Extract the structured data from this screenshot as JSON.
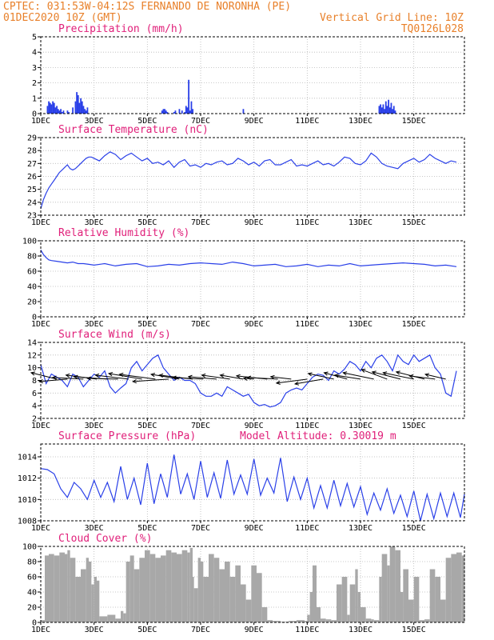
{
  "header": {
    "line1_left": "CPTEC:   031:53W-04:12S  FERNANDO DE NORONHA (PE)",
    "line2_left": "01DEC2020 10Z (GMT)",
    "line2_right": "Vertical Grid Line: 10Z",
    "line3_right": "TQ0126L028"
  },
  "colors": {
    "header": "#e8802a",
    "panel_title": "#e0207a",
    "series": "#2a40e8",
    "cloud": "#a8a8a8",
    "arrow": "#000000"
  },
  "chart_data": [
    {
      "type": "bar",
      "title": "Precipitation (mm/h)",
      "x_tick_labels": [
        "1DEC",
        "3DEC",
        "5DEC",
        "7DEC",
        "9DEC",
        "11DEC",
        "13DEC",
        "15DEC"
      ],
      "y_tick_labels": [
        "0",
        "1",
        "2",
        "3",
        "4",
        "5"
      ],
      "ylim": [
        0,
        5
      ],
      "x_unit": "days since 01DEC 10Z",
      "x": [
        0.25,
        0.3,
        0.35,
        0.4,
        0.45,
        0.5,
        0.55,
        0.6,
        0.65,
        0.7,
        0.75,
        0.8,
        0.85,
        1.0,
        1.05,
        1.2,
        1.3,
        1.35,
        1.4,
        1.45,
        1.5,
        1.55,
        1.6,
        1.65,
        1.7,
        1.75,
        4.55,
        4.6,
        4.65,
        4.7,
        4.75,
        5.0,
        5.05,
        5.2,
        5.3,
        5.4,
        5.45,
        5.5,
        5.55,
        5.6,
        5.65,
        5.7,
        7.6,
        12.7,
        12.75,
        12.8,
        12.85,
        12.9,
        12.95,
        13.0,
        13.05,
        13.1,
        13.15,
        13.2,
        13.25,
        13.3
      ],
      "values": [
        0.5,
        0.8,
        0.7,
        0.6,
        0.8,
        0.7,
        0.4,
        0.5,
        0.3,
        0.2,
        0.3,
        0.1,
        0.2,
        0.2,
        0.1,
        0.4,
        0.8,
        1.4,
        1.2,
        0.7,
        1.0,
        0.8,
        0.5,
        0.3,
        0.2,
        0.4,
        0.2,
        0.3,
        0.3,
        0.2,
        0.1,
        0.1,
        0.2,
        0.3,
        0.2,
        0.1,
        0.5,
        0.4,
        2.2,
        0.2,
        0.8,
        0.3,
        0.3,
        0.5,
        0.6,
        0.4,
        0.6,
        0.3,
        0.8,
        0.5,
        0.9,
        0.4,
        0.7,
        0.3,
        0.5,
        0.2
      ]
    },
    {
      "type": "line",
      "title": "Surface Temperature (nC)",
      "x_tick_labels": [
        "1DEC",
        "3DEC",
        "5DEC",
        "7DEC",
        "9DEC",
        "11DEC",
        "13DEC",
        "15DEC"
      ],
      "y_tick_labels": [
        "23",
        "24",
        "25",
        "26",
        "27",
        "28",
        "29"
      ],
      "ylim": [
        23,
        29
      ],
      "x": [
        0,
        0.1,
        0.2,
        0.3,
        0.4,
        0.5,
        0.6,
        0.7,
        0.8,
        0.9,
        1.0,
        1.1,
        1.2,
        1.3,
        1.4,
        1.5,
        1.6,
        1.7,
        1.8,
        1.9,
        2.0,
        2.2,
        2.4,
        2.6,
        2.8,
        3.0,
        3.2,
        3.4,
        3.6,
        3.8,
        4.0,
        4.2,
        4.4,
        4.6,
        4.8,
        5.0,
        5.2,
        5.4,
        5.6,
        5.8,
        6.0,
        6.2,
        6.4,
        6.6,
        6.8,
        7.0,
        7.2,
        7.4,
        7.6,
        7.8,
        8.0,
        8.2,
        8.4,
        8.6,
        8.8,
        9.0,
        9.2,
        9.4,
        9.6,
        9.8,
        10.0,
        10.2,
        10.4,
        10.6,
        10.8,
        11.0,
        11.2,
        11.4,
        11.6,
        11.8,
        12.0,
        12.2,
        12.4,
        12.6,
        12.8,
        13.0,
        13.2,
        13.4,
        13.6,
        13.8,
        14.0,
        14.2,
        14.4,
        14.6,
        14.8,
        15.0,
        15.2,
        15.4,
        15.6
      ],
      "values": [
        23.5,
        24.2,
        24.7,
        25.1,
        25.4,
        25.7,
        26.0,
        26.3,
        26.5,
        26.7,
        26.9,
        26.6,
        26.5,
        26.6,
        26.8,
        27.0,
        27.2,
        27.4,
        27.5,
        27.5,
        27.4,
        27.2,
        27.6,
        27.9,
        27.7,
        27.3,
        27.6,
        27.8,
        27.5,
        27.2,
        27.4,
        27.0,
        27.1,
        26.9,
        27.2,
        26.7,
        27.1,
        27.3,
        26.8,
        26.9,
        26.7,
        27.0,
        26.9,
        27.1,
        27.2,
        26.9,
        27.0,
        27.4,
        27.2,
        26.9,
        27.1,
        26.8,
        27.2,
        27.3,
        26.9,
        26.9,
        27.1,
        27.3,
        26.8,
        26.9,
        26.8,
        27.0,
        27.2,
        26.9,
        27.0,
        26.8,
        27.1,
        27.5,
        27.4,
        27.0,
        26.9,
        27.2,
        27.8,
        27.5,
        27.0,
        26.8,
        26.7,
        26.6,
        27.0,
        27.2,
        27.4,
        27.1,
        27.3,
        27.7,
        27.4,
        27.2,
        27.0,
        27.2,
        27.1
      ]
    },
    {
      "type": "line",
      "title": "Relative Humidity (%)",
      "x_tick_labels": [
        "1DEC",
        "3DEC",
        "5DEC",
        "7DEC",
        "9DEC",
        "11DEC",
        "13DEC",
        "15DEC"
      ],
      "y_tick_labels": [
        "0",
        "20",
        "40",
        "60",
        "80",
        "100"
      ],
      "ylim": [
        0,
        100
      ],
      "x": [
        0,
        0.1,
        0.2,
        0.3,
        0.4,
        0.6,
        0.8,
        1.0,
        1.2,
        1.4,
        1.6,
        1.8,
        2.0,
        2.4,
        2.8,
        3.2,
        3.6,
        4.0,
        4.4,
        4.8,
        5.2,
        5.6,
        6.0,
        6.4,
        6.8,
        7.2,
        7.6,
        8.0,
        8.4,
        8.8,
        9.2,
        9.6,
        10.0,
        10.4,
        10.8,
        11.2,
        11.6,
        12.0,
        12.4,
        12.8,
        13.2,
        13.6,
        14.0,
        14.4,
        14.8,
        15.2,
        15.6
      ],
      "values": [
        88,
        82,
        78,
        75,
        74,
        73,
        72,
        71,
        72,
        70,
        70,
        69,
        68,
        70,
        67,
        69,
        70,
        66,
        67,
        69,
        68,
        70,
        71,
        70,
        69,
        72,
        70,
        67,
        68,
        69,
        66,
        67,
        69,
        66,
        68,
        67,
        70,
        67,
        68,
        69,
        70,
        71,
        70,
        69,
        67,
        68,
        66
      ]
    },
    {
      "type": "line",
      "title": "Surface Wind (m/s)",
      "x_tick_labels": [
        "1DEC",
        "3DEC",
        "5DEC",
        "7DEC",
        "9DEC",
        "11DEC",
        "13DEC",
        "15DEC"
      ],
      "y_tick_labels": [
        "2",
        "4",
        "6",
        "8",
        "10",
        "12",
        "14"
      ],
      "ylim": [
        2,
        14
      ],
      "x": [
        0,
        0.2,
        0.4,
        0.6,
        0.8,
        1.0,
        1.2,
        1.4,
        1.6,
        1.8,
        2.0,
        2.2,
        2.4,
        2.6,
        2.8,
        3.0,
        3.2,
        3.4,
        3.6,
        3.8,
        4.0,
        4.2,
        4.4,
        4.6,
        4.8,
        5.0,
        5.2,
        5.4,
        5.6,
        5.8,
        6.0,
        6.2,
        6.4,
        6.6,
        6.8,
        7.0,
        7.2,
        7.4,
        7.6,
        7.8,
        8.0,
        8.2,
        8.4,
        8.6,
        8.8,
        9.0,
        9.2,
        9.4,
        9.6,
        9.8,
        10.0,
        10.2,
        10.4,
        10.6,
        10.8,
        11.0,
        11.2,
        11.4,
        11.6,
        11.8,
        12.0,
        12.2,
        12.4,
        12.6,
        12.8,
        13.0,
        13.2,
        13.4,
        13.6,
        13.8,
        14.0,
        14.2,
        14.4,
        14.6,
        14.8,
        15.0,
        15.2,
        15.4,
        15.6
      ],
      "values": [
        10.5,
        7.5,
        9,
        8.5,
        8,
        7,
        9,
        8.5,
        7,
        8,
        9,
        8.5,
        9.5,
        7,
        6,
        6.8,
        7.5,
        10,
        11,
        9.5,
        10.5,
        11.5,
        12,
        10,
        9,
        8,
        8.5,
        8,
        8,
        7.5,
        6,
        5.5,
        5.5,
        6,
        5.5,
        7,
        6.5,
        6,
        5.5,
        5.8,
        4.5,
        4,
        4.2,
        3.8,
        4,
        4.5,
        6,
        6.5,
        6.8,
        6.5,
        7.5,
        8.5,
        9,
        8.8,
        8,
        9.5,
        9,
        9.8,
        11,
        10.5,
        9.5,
        11,
        10,
        11.5,
        12,
        11,
        9.5,
        12,
        11,
        10.5,
        12,
        11,
        11.5,
        12,
        10,
        9,
        6,
        5.5,
        9.5
      ]
    },
    {
      "type": "line",
      "title": "Surface Pressure (hPa)",
      "annotation": "Model Altitude: 0.30019 m",
      "x_tick_labels": [
        "1DEC",
        "3DEC",
        "5DEC",
        "7DEC",
        "9DEC",
        "11DEC",
        "13DEC",
        "15DEC"
      ],
      "y_tick_labels": [
        "1008",
        "1010",
        "1012",
        "1014"
      ],
      "ylim": [
        1008,
        1015.2
      ],
      "x": [
        0,
        0.25,
        0.5,
        0.75,
        1.0,
        1.25,
        1.5,
        1.75,
        2.0,
        2.25,
        2.5,
        2.75,
        3.0,
        3.25,
        3.5,
        3.75,
        4.0,
        4.25,
        4.5,
        4.75,
        5.0,
        5.25,
        5.5,
        5.75,
        6.0,
        6.25,
        6.5,
        6.75,
        7.0,
        7.25,
        7.5,
        7.75,
        8.0,
        8.25,
        8.5,
        8.75,
        9.0,
        9.25,
        9.5,
        9.75,
        10.0,
        10.25,
        10.5,
        10.75,
        11.0,
        11.25,
        11.5,
        11.75,
        12.0,
        12.25,
        12.5,
        12.75,
        13.0,
        13.25,
        13.5,
        13.75,
        14.0,
        14.25,
        14.5,
        14.75,
        15.0,
        15.25,
        15.5,
        15.75,
        15.9
      ],
      "values": [
        1012.9,
        1012.8,
        1012.4,
        1011.0,
        1010.2,
        1011.6,
        1011.0,
        1010.0,
        1011.8,
        1010.2,
        1011.6,
        1009.8,
        1013.1,
        1010.0,
        1012.0,
        1009.5,
        1013.4,
        1009.6,
        1012.4,
        1010.2,
        1014.2,
        1010.5,
        1012.4,
        1010.0,
        1013.6,
        1010.2,
        1012.5,
        1010.1,
        1013.7,
        1010.5,
        1012.3,
        1010.5,
        1013.8,
        1010.4,
        1012.0,
        1010.6,
        1013.9,
        1009.8,
        1012.1,
        1010.0,
        1012.0,
        1009.2,
        1011.3,
        1009.2,
        1011.8,
        1009.4,
        1011.5,
        1009.3,
        1011.2,
        1008.6,
        1010.6,
        1009.0,
        1011.0,
        1008.7,
        1010.4,
        1008.4,
        1010.8,
        1008.0,
        1010.5,
        1008.2,
        1010.6,
        1008.4,
        1010.6,
        1008.3,
        1010.5
      ]
    },
    {
      "type": "area",
      "title": "Cloud Cover (%)",
      "x_tick_labels": [
        "1DEC",
        "3DEC",
        "5DEC",
        "7DEC",
        "9DEC",
        "11DEC",
        "13DEC",
        "15DEC"
      ],
      "y_tick_labels": [
        "0",
        "20",
        "40",
        "60",
        "80",
        "100"
      ],
      "ylim": [
        0,
        100
      ],
      "x": [
        0,
        0.15,
        0.3,
        0.5,
        0.7,
        0.9,
        1.0,
        1.1,
        1.3,
        1.5,
        1.7,
        1.8,
        1.9,
        2.0,
        2.1,
        2.2,
        2.5,
        2.8,
        3.0,
        3.1,
        3.2,
        3.35,
        3.5,
        3.7,
        3.9,
        4.1,
        4.3,
        4.5,
        4.7,
        4.9,
        5.1,
        5.3,
        5.5,
        5.6,
        5.7,
        5.75,
        5.9,
        6.0,
        6.1,
        6.3,
        6.5,
        6.7,
        6.9,
        7.1,
        7.3,
        7.5,
        7.7,
        7.9,
        8.1,
        8.3,
        8.5,
        8.7,
        9.0,
        9.3,
        9.6,
        9.9,
        10.0,
        10.1,
        10.2,
        10.35,
        10.5,
        10.7,
        10.9,
        11.1,
        11.3,
        11.5,
        11.6,
        11.8,
        11.9,
        12.0,
        12.2,
        12.4,
        12.5,
        12.7,
        12.8,
        13.0,
        13.1,
        13.3,
        13.5,
        13.6,
        13.8,
        14.0,
        14.2,
        14.4,
        14.6,
        14.8,
        15.0,
        15.2,
        15.4,
        15.6,
        15.8,
        15.9
      ],
      "values": [
        3,
        88,
        90,
        88,
        92,
        90,
        95,
        85,
        60,
        70,
        85,
        80,
        50,
        60,
        55,
        8,
        10,
        5,
        15,
        12,
        80,
        88,
        70,
        85,
        95,
        90,
        85,
        88,
        95,
        92,
        90,
        95,
        92,
        98,
        60,
        45,
        85,
        80,
        60,
        90,
        85,
        70,
        80,
        60,
        75,
        50,
        30,
        75,
        65,
        20,
        3,
        2,
        1,
        2,
        3,
        2,
        10,
        40,
        75,
        20,
        5,
        4,
        3,
        50,
        60,
        10,
        50,
        70,
        40,
        20,
        5,
        4,
        3,
        60,
        90,
        75,
        100,
        95,
        40,
        70,
        30,
        60,
        3,
        4,
        70,
        60,
        30,
        85,
        90,
        92,
        88,
        90
      ]
    }
  ],
  "wind_vectors": [
    {
      "x": 0.6,
      "dx": -1.0,
      "dy": 0.8
    },
    {
      "x": 1.0,
      "dx": -1.1,
      "dy": -0.3
    },
    {
      "x": 1.6,
      "dx": -1.2,
      "dy": 0.2
    },
    {
      "x": 2.1,
      "dx": -1.2,
      "dy": 0.5
    },
    {
      "x": 2.5,
      "dx": -1.3,
      "dy": 0.3
    },
    {
      "x": 2.9,
      "dx": -1.2,
      "dy": 0.1
    },
    {
      "x": 3.3,
      "dx": -1.3,
      "dy": 0.5
    },
    {
      "x": 3.8,
      "dx": -1.3,
      "dy": 0.7
    },
    {
      "x": 4.3,
      "dx": -1.4,
      "dy": 0.6
    },
    {
      "x": 4.8,
      "dx": -1.4,
      "dy": -0.3
    },
    {
      "x": 5.2,
      "dx": -1.1,
      "dy": 0.6
    },
    {
      "x": 5.7,
      "dx": -1.3,
      "dy": 0.5
    },
    {
      "x": 6.1,
      "dx": -1.2,
      "dy": 0.2
    },
    {
      "x": 6.6,
      "dx": -1.1,
      "dy": 0.3
    },
    {
      "x": 7.1,
      "dx": -1.1,
      "dy": 0.5
    },
    {
      "x": 7.6,
      "dx": -0.9,
      "dy": 0.5
    },
    {
      "x": 8.0,
      "dx": -0.4,
      "dy": 0.1
    },
    {
      "x": 8.5,
      "dx": -1.2,
      "dy": 0.4
    },
    {
      "x": 8.9,
      "dx": -1.2,
      "dy": 0.2
    },
    {
      "x": 9.4,
      "dx": -0.8,
      "dy": 0.3
    },
    {
      "x": 10.0,
      "dx": -1.2,
      "dy": -0.5
    },
    {
      "x": 10.6,
      "dx": -1.1,
      "dy": -0.6
    },
    {
      "x": 11.0,
      "dx": -1.0,
      "dy": 0.7
    },
    {
      "x": 11.5,
      "dx": -0.9,
      "dy": 0.8
    },
    {
      "x": 12.0,
      "dx": -1.0,
      "dy": 0.5
    },
    {
      "x": 12.5,
      "dx": -1.2,
      "dy": 0.8
    },
    {
      "x": 13.0,
      "dx": -1.0,
      "dy": 1.2
    },
    {
      "x": 13.5,
      "dx": -1.1,
      "dy": 0.9
    },
    {
      "x": 14.0,
      "dx": -1.2,
      "dy": 0.8
    },
    {
      "x": 14.4,
      "dx": -1.1,
      "dy": 0.9
    },
    {
      "x": 14.8,
      "dx": -1.0,
      "dy": 0.4
    },
    {
      "x": 15.2,
      "dx": -0.8,
      "dy": 0.6
    }
  ]
}
